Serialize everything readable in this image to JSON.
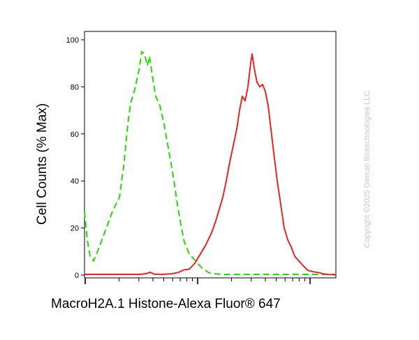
{
  "chart_data": {
    "type": "line",
    "title": "",
    "xlabel": "MacroH2A.1 Histone-Alexa Fluor® 647",
    "ylabel": "Cell Counts (% Max)",
    "x_scale": "log",
    "ylim": [
      0,
      100
    ],
    "y_ticks": [
      0,
      20,
      40,
      60,
      80,
      100
    ],
    "grid": false,
    "legend": "none",
    "series": [
      {
        "color": "#22dd00",
        "style": "dashed",
        "points": [
          [
            0,
            27
          ],
          [
            4,
            15
          ],
          [
            8,
            8
          ],
          [
            13,
            6
          ],
          [
            20,
            11
          ],
          [
            30,
            19
          ],
          [
            40,
            27
          ],
          [
            50,
            33
          ],
          [
            56,
            46
          ],
          [
            62,
            64
          ],
          [
            66,
            73
          ],
          [
            72,
            79
          ],
          [
            78,
            87
          ],
          [
            82,
            95
          ],
          [
            86,
            94
          ],
          [
            90,
            89
          ],
          [
            93,
            93
          ],
          [
            97,
            85
          ],
          [
            102,
            76
          ],
          [
            108,
            72
          ],
          [
            114,
            64
          ],
          [
            120,
            54
          ],
          [
            126,
            44
          ],
          [
            132,
            32
          ],
          [
            137,
            23
          ],
          [
            143,
            14
          ],
          [
            150,
            9
          ],
          [
            156,
            7
          ],
          [
            162,
            5
          ],
          [
            168,
            3
          ],
          [
            178,
            1
          ],
          [
            188,
            0.5
          ],
          [
            200,
            0.3
          ],
          [
            240,
            0.3
          ],
          [
            290,
            0.3
          ],
          [
            360,
            0.3
          ]
        ]
      },
      {
        "color": "#ee2222",
        "style": "solid",
        "points": [
          [
            0,
            0.3
          ],
          [
            60,
            0.3
          ],
          [
            80,
            0.3
          ],
          [
            88,
            0.6
          ],
          [
            94,
            1.2
          ],
          [
            100,
            0.4
          ],
          [
            112,
            0.3
          ],
          [
            126,
            0.6
          ],
          [
            135,
            1.2
          ],
          [
            142,
            2.2
          ],
          [
            150,
            2.5
          ],
          [
            158,
            5
          ],
          [
            166,
            9
          ],
          [
            174,
            13
          ],
          [
            182,
            18
          ],
          [
            188,
            23
          ],
          [
            193,
            28
          ],
          [
            198,
            33
          ],
          [
            203,
            40
          ],
          [
            208,
            48
          ],
          [
            213,
            55
          ],
          [
            218,
            62
          ],
          [
            222,
            70
          ],
          [
            226,
            76
          ],
          [
            230,
            74
          ],
          [
            234,
            80
          ],
          [
            238,
            90
          ],
          [
            240,
            94
          ],
          [
            243,
            88
          ],
          [
            247,
            82
          ],
          [
            251,
            80
          ],
          [
            255,
            81
          ],
          [
            259,
            78
          ],
          [
            263,
            72
          ],
          [
            267,
            62
          ],
          [
            271,
            52
          ],
          [
            276,
            40
          ],
          [
            281,
            30
          ],
          [
            286,
            20
          ],
          [
            291,
            15
          ],
          [
            296,
            12
          ],
          [
            301,
            8
          ],
          [
            307,
            6
          ],
          [
            313,
            4
          ],
          [
            320,
            2
          ],
          [
            328,
            1.4
          ],
          [
            336,
            1
          ],
          [
            342,
            0.5
          ],
          [
            350,
            0.2
          ],
          [
            360,
            0.1
          ]
        ]
      }
    ]
  },
  "watermark": "Copyright ©2025 Genuin Biotechnologies LLC"
}
